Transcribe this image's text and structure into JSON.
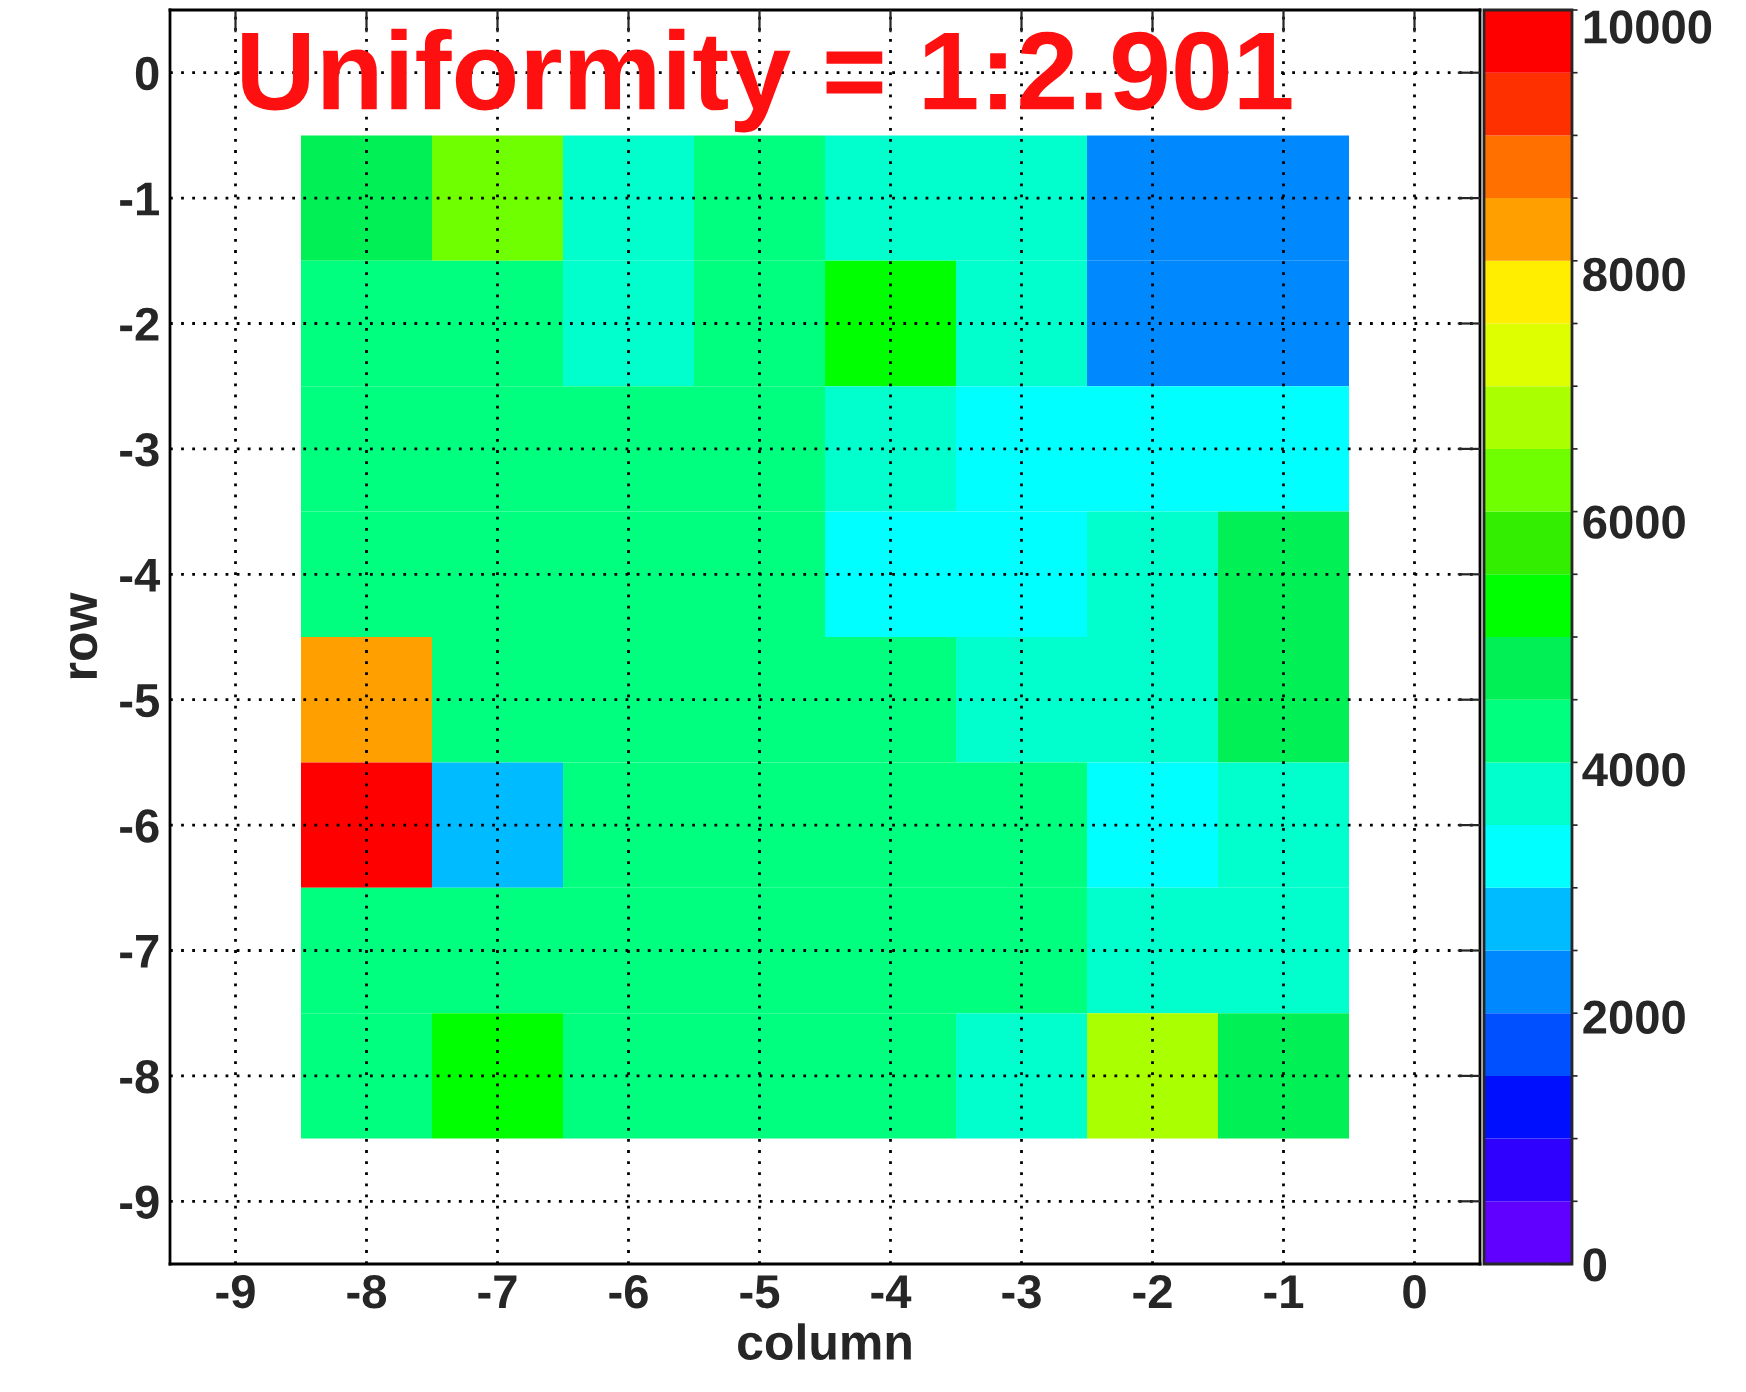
{
  "chart_data": {
    "type": "heatmap",
    "title": "Uniformity = 1:2.901",
    "xlabel": "column",
    "ylabel": "row",
    "x": [
      -8,
      -7,
      -6,
      -5,
      -4,
      -3,
      -2,
      -1
    ],
    "y": [
      -1,
      -2,
      -3,
      -4,
      -5,
      -6,
      -7,
      -8
    ],
    "cells": [
      [
        4800,
        6300,
        3800,
        4300,
        3800,
        3800,
        2300,
        2300
      ],
      [
        4300,
        4300,
        3800,
        4300,
        5300,
        3800,
        2300,
        2300
      ],
      [
        4300,
        4300,
        4300,
        4300,
        3800,
        3300,
        3300,
        3300
      ],
      [
        4300,
        4300,
        4300,
        4300,
        3300,
        3300,
        3800,
        4800
      ],
      [
        8350,
        4300,
        4300,
        4300,
        4300,
        3800,
        3800,
        4800
      ],
      [
        9880,
        2800,
        4300,
        4300,
        4300,
        4300,
        3300,
        3800
      ],
      [
        4300,
        4300,
        4300,
        4300,
        4300,
        4300,
        3800,
        3800
      ],
      [
        4300,
        5300,
        4300,
        4300,
        4300,
        3800,
        6800,
        4800
      ]
    ],
    "colors": [
      "#6000ff",
      "#3000ff",
      "#0010ff",
      "#0050ff",
      "#0088ff",
      "#00bbff",
      "#00ffff",
      "#00ffcc",
      "#00ff7f",
      "#00f055",
      "#00ff00",
      "#33ee00",
      "#70ff00",
      "#aaff00",
      "#ddff00",
      "#ffee00",
      "#ffa000",
      "#ff7000",
      "#ff3000",
      "#ff0000"
    ],
    "clim": [
      0,
      10130
    ],
    "cticks": [
      0,
      2000,
      4000,
      6000,
      8000,
      10000
    ],
    "xlim": [
      -9.5,
      0.5
    ],
    "ylim": [
      -9.5,
      0.5
    ],
    "xticks": [
      -9,
      -8,
      -7,
      -6,
      -5,
      -4,
      -3,
      -2,
      -1,
      0
    ],
    "yticks": [
      -9,
      -8,
      -7,
      -6,
      -5,
      -4,
      -3,
      -2,
      -1,
      0
    ],
    "grid": true
  }
}
